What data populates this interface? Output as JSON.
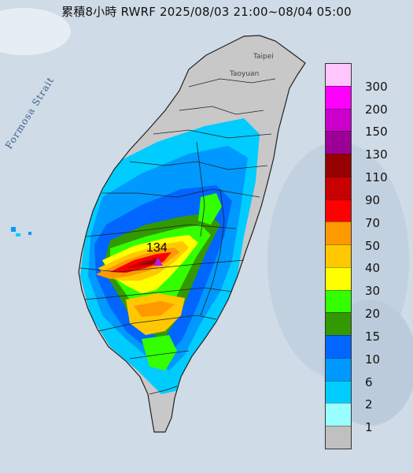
{
  "title": "累積8小時 RWRF 2025/08/03 21:00~08/04 05:00",
  "sea_label": "Formosa Strait",
  "cities": {
    "taipei": "Taipei",
    "taoyuan": "Taoyuan"
  },
  "max_value": "134",
  "legend": [
    {
      "label": "300",
      "color": "#ffc6fe"
    },
    {
      "label": "200",
      "color": "#ff00ff"
    },
    {
      "label": "150",
      "color": "#cc00cc"
    },
    {
      "label": "130",
      "color": "#9c0099"
    },
    {
      "label": "110",
      "color": "#960000"
    },
    {
      "label": "90",
      "color": "#c80000"
    },
    {
      "label": "70",
      "color": "#ff0000"
    },
    {
      "label": "50",
      "color": "#ff9900"
    },
    {
      "label": "40",
      "color": "#ffc800"
    },
    {
      "label": "30",
      "color": "#ffff00"
    },
    {
      "label": "20",
      "color": "#33ff00"
    },
    {
      "label": "15",
      "color": "#339900"
    },
    {
      "label": "10",
      "color": "#0066ff"
    },
    {
      "label": "6",
      "color": "#0099ff"
    },
    {
      "label": "2",
      "color": "#00ccff"
    },
    {
      "label": "1",
      "color": "#99ffff"
    },
    {
      "label": "",
      "color": "#c0c0c0"
    }
  ],
  "colors": {
    "sea": "#cfdbe6",
    "land": "#c8c8c8",
    "boundary": "#222222"
  }
}
